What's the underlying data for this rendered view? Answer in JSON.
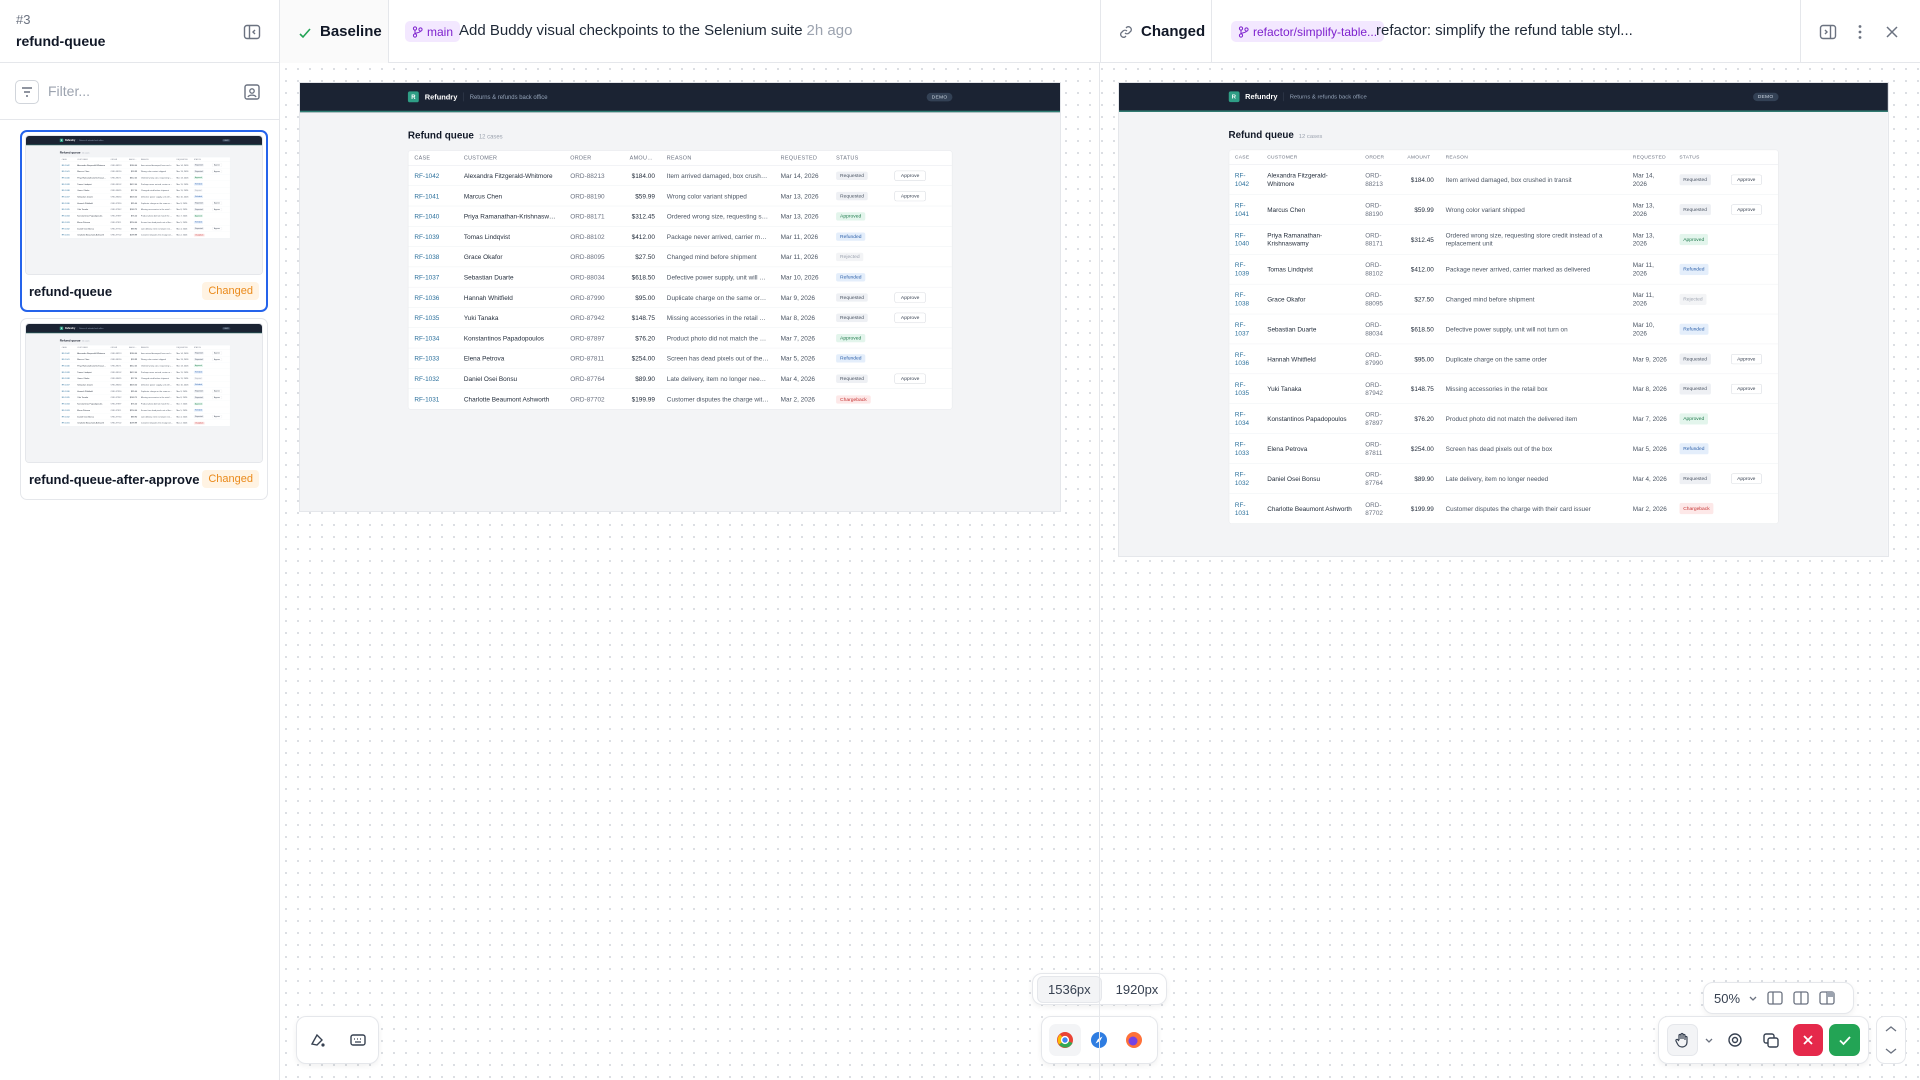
{
  "sidebar": {
    "number": "#3",
    "title": "refund-queue",
    "filter_placeholder": "Filter...",
    "snapshots": [
      {
        "name": "refund-queue",
        "status": "Changed"
      },
      {
        "name": "refund-queue-after-approve",
        "status": "Changed"
      }
    ]
  },
  "header": {
    "baseline": {
      "label": "Baseline",
      "branch": "main",
      "commit": "Add Buddy visual checkpoints to the Selenium suite",
      "time": "2h ago"
    },
    "changed": {
      "label": "Changed",
      "branch": "refactor/simplify-table...",
      "commit": "refactor: simplify the refund table styl..."
    }
  },
  "app": {
    "logo": "R",
    "brand": "Refundry",
    "tagline": "Returns & refunds back office",
    "badge": "DEMO",
    "title": "Refund queue",
    "count": "12 cases",
    "columns": [
      "CASE",
      "CUSTOMER",
      "ORDER",
      "AMOUNT",
      "REASON",
      "REQUESTED",
      "STATUS"
    ]
  },
  "table": {
    "rows": [
      {
        "case": "RF-1042",
        "customer": "Alexandra Fitzgerald-Whitmore",
        "order": "ORD-88213",
        "amount": "$184.00",
        "reason": "Item arrived damaged, box crushed in transit",
        "requested": "Mar 14, 2026",
        "status": "Requested",
        "action": "Approve"
      },
      {
        "case": "RF-1041",
        "customer": "Marcus Chen",
        "order": "ORD-88190",
        "amount": "$59.99",
        "reason": "Wrong color variant shipped",
        "requested": "Mar 13, 2026",
        "status": "Requested",
        "action": "Approve"
      },
      {
        "case": "RF-1040",
        "customer": "Priya Ramanathan-Krishnaswamy",
        "order": "ORD-88171",
        "amount": "$312.45",
        "reason": "Ordered wrong size, requesting store credit instead of a replacement unit",
        "requested": "Mar 13, 2026",
        "status": "Approved"
      },
      {
        "case": "RF-1039",
        "customer": "Tomas Lindqvist",
        "order": "ORD-88102",
        "amount": "$412.00",
        "reason": "Package never arrived, carrier marked as delivered",
        "requested": "Mar 11, 2026",
        "status": "Refunded"
      },
      {
        "case": "RF-1038",
        "customer": "Grace Okafor",
        "order": "ORD-88095",
        "amount": "$27.50",
        "reason": "Changed mind before shipment",
        "requested": "Mar 11, 2026",
        "status": "Rejected"
      },
      {
        "case": "RF-1037",
        "customer": "Sebastian Duarte",
        "order": "ORD-88034",
        "amount": "$618.50",
        "reason": "Defective power supply, unit will not turn on",
        "requested": "Mar 10, 2026",
        "status": "Refunded"
      },
      {
        "case": "RF-1036",
        "customer": "Hannah Whitfield",
        "order": "ORD-87990",
        "amount": "$95.00",
        "reason": "Duplicate charge on the same order",
        "requested": "Mar 9, 2026",
        "status": "Requested",
        "action": "Approve"
      },
      {
        "case": "RF-1035",
        "customer": "Yuki Tanaka",
        "order": "ORD-87942",
        "amount": "$148.75",
        "reason": "Missing accessories in the retail box",
        "requested": "Mar 8, 2026",
        "status": "Requested",
        "action": "Approve"
      },
      {
        "case": "RF-1034",
        "customer": "Konstantinos Papadopoulos",
        "order": "ORD-87897",
        "amount": "$76.20",
        "reason": "Product photo did not match the delivered item",
        "requested": "Mar 7, 2026",
        "status": "Approved"
      },
      {
        "case": "RF-1033",
        "customer": "Elena Petrova",
        "order": "ORD-87811",
        "amount": "$254.00",
        "reason": "Screen has dead pixels out of the box",
        "requested": "Mar 5, 2026",
        "status": "Refunded"
      },
      {
        "case": "RF-1032",
        "customer": "Daniel Osei Bonsu",
        "order": "ORD-87764",
        "amount": "$89.90",
        "reason": "Late delivery, item no longer needed",
        "requested": "Mar 4, 2026",
        "status": "Requested",
        "action": "Approve"
      },
      {
        "case": "RF-1031",
        "customer": "Charlotte Beaumont Ashworth",
        "order": "ORD-87702",
        "amount": "$199.99",
        "reason": "Customer disputes the charge with their card issuer",
        "requested": "Mar 2, 2026",
        "status": "Chargeback"
      }
    ]
  },
  "viewports": [
    "1536px",
    "1920px"
  ],
  "zoom": "50%"
}
